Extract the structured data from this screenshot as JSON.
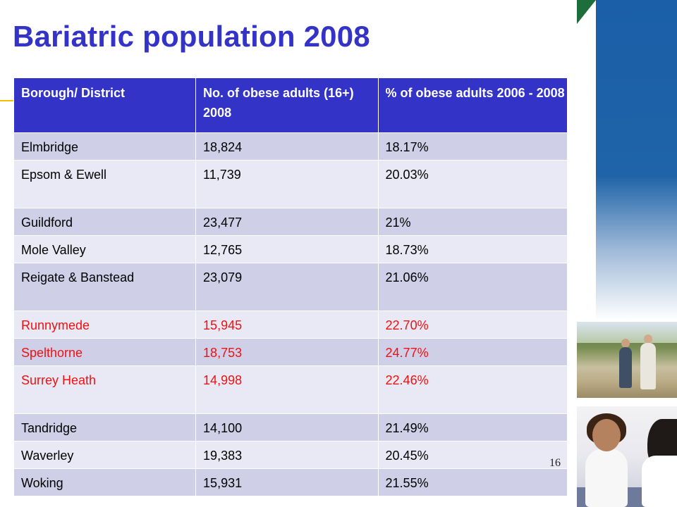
{
  "title": "Bariatric population 2008",
  "table": {
    "headers": [
      "Borough/ District",
      "No. of obese adults (16+) 2008",
      "% of obese adults 2006 - 2008"
    ],
    "rows": [
      {
        "district": "Elmbridge",
        "count": "18,824",
        "percent": "18.17%",
        "highlight": false
      },
      {
        "district": "Epsom & Ewell",
        "count": "11,739",
        "percent": "20.03%",
        "highlight": false
      },
      {
        "district": "Guildford",
        "count": "23,477",
        "percent": "21%",
        "highlight": false
      },
      {
        "district": "Mole Valley",
        "count": "12,765",
        "percent": "18.73%",
        "highlight": false
      },
      {
        "district": "Reigate & Banstead",
        "count": "23,079",
        "percent": "21.06%",
        "highlight": false
      },
      {
        "district": "Runnymede",
        "count": "15,945",
        "percent": "22.70%",
        "highlight": true
      },
      {
        "district": "Spelthorne",
        "count": "18,753",
        "percent": "24.77%",
        "highlight": true
      },
      {
        "district": "Surrey Heath",
        "count": "14,998",
        "percent": "22.46%",
        "highlight": true
      },
      {
        "district": "Tandridge",
        "count": "14,100",
        "percent": "21.49%",
        "highlight": false
      },
      {
        "district": "Waverley",
        "count": "19,383",
        "percent": "20.45%",
        "highlight": false
      },
      {
        "district": "Woking",
        "count": "15,931",
        "percent": "21.55%",
        "highlight": false
      }
    ]
  },
  "page_number": "16",
  "colors": {
    "title": "#3333c8",
    "header_bg": "#3333c8",
    "row_odd": "#cfd0e8",
    "row_even": "#e8e9f4",
    "highlight_text": "#ee1111",
    "band": "#1a5fa8",
    "corner": "#1e6e3c"
  },
  "images": [
    "couple-walking-in-park-photo",
    "two-women-talking-photo"
  ]
}
